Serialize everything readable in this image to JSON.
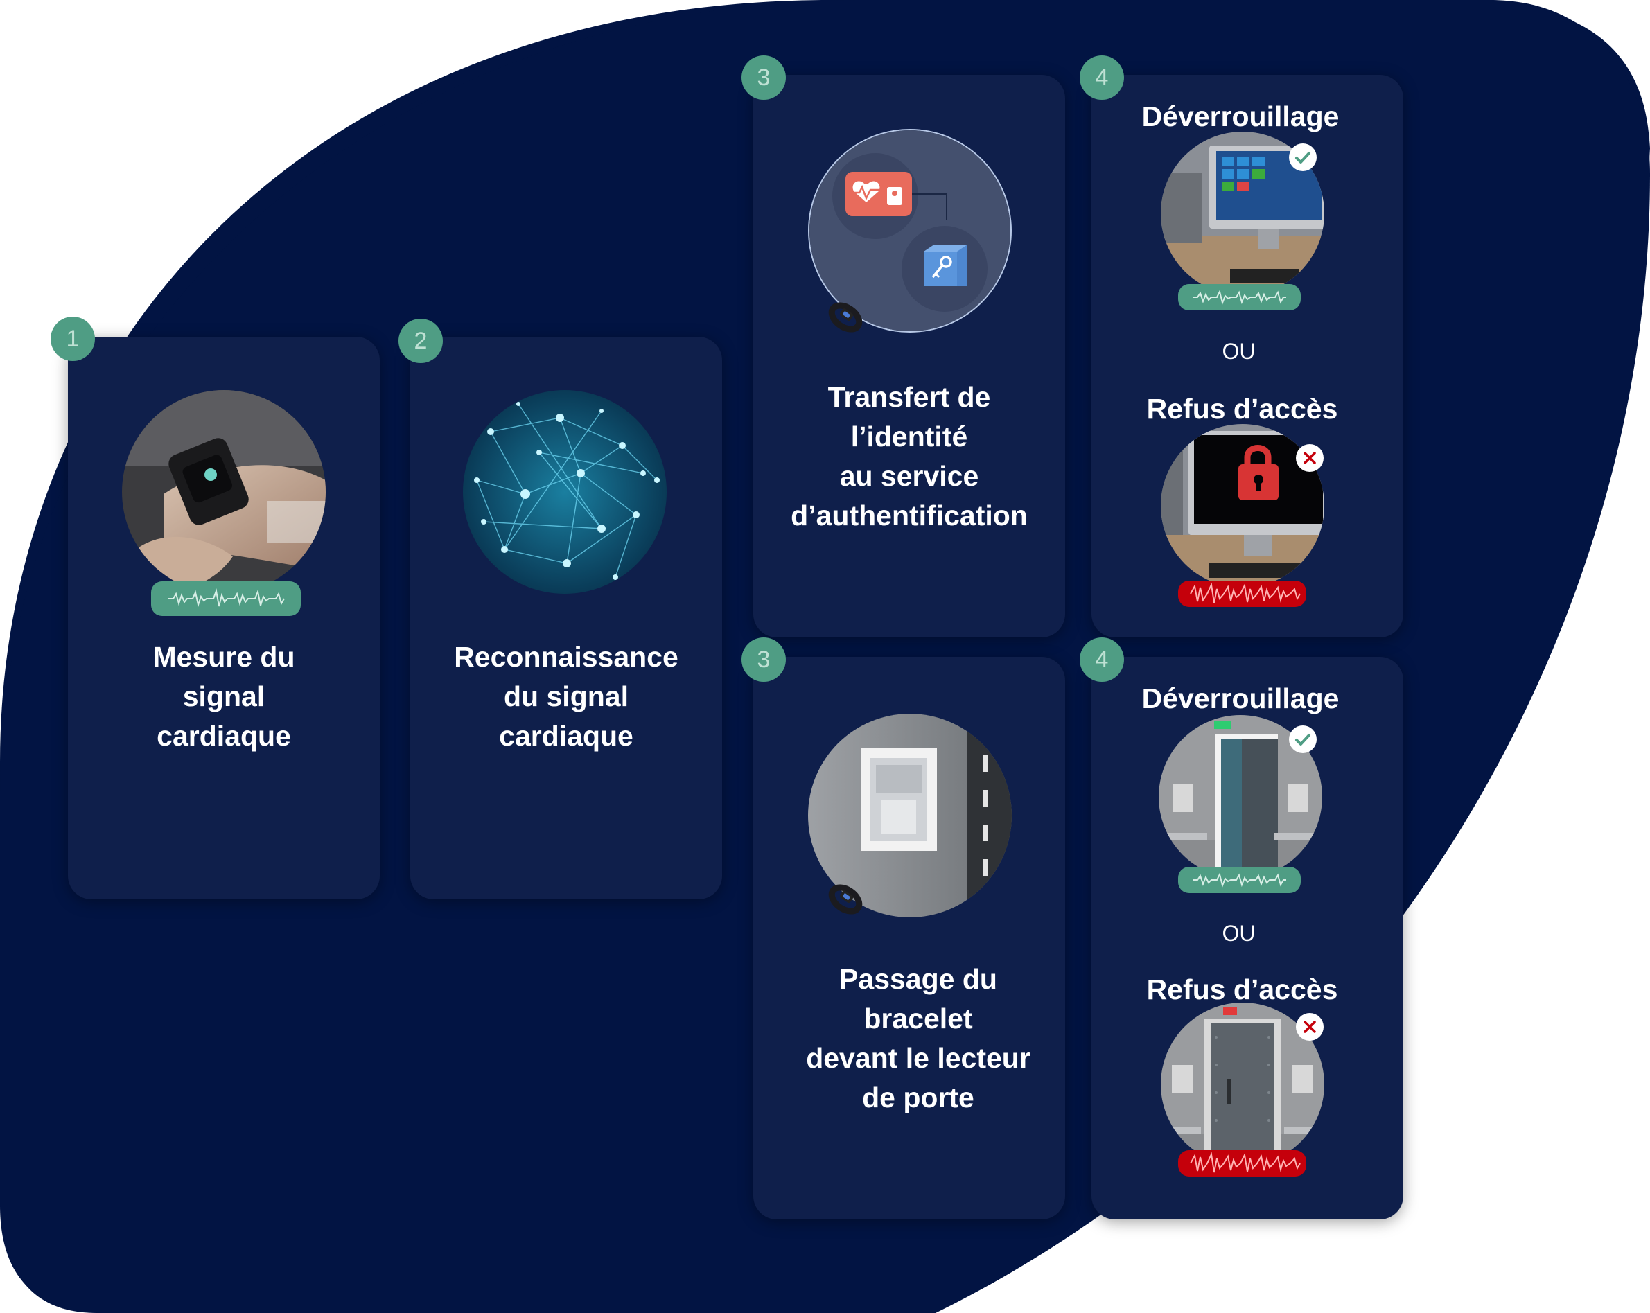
{
  "steps": {
    "s1": {
      "number": "1",
      "label": [
        "Mesure du",
        "signal",
        "cardiaque"
      ]
    },
    "s2": {
      "number": "2",
      "label": [
        "Reconnaissance",
        "du signal",
        "cardiaque"
      ]
    },
    "s3a": {
      "number": "3",
      "label": [
        "Transfert de",
        "l’identité",
        "au service",
        "d’authentification"
      ]
    },
    "s4a": {
      "number": "4",
      "success": "Déverrouillage",
      "or": "OU",
      "refusal": "Refus d’accès"
    },
    "s3b": {
      "number": "3",
      "label": [
        "Passage du",
        "bracelet",
        "devant le lecteur",
        "de porte"
      ]
    },
    "s4b": {
      "number": "4",
      "success": "Déverrouillage",
      "or": "OU",
      "refusal": "Refus d’accès"
    }
  },
  "icons": {
    "success": "check-icon",
    "refusal": "cross-icon",
    "heart": "heart-pulse-icon",
    "key": "key-icon",
    "lock": "padlock-icon",
    "wristband": "wristband-icon",
    "signal": "heartbeat-wave-icon"
  },
  "colors": {
    "background_shape": "#021443",
    "card": "#0f1f4b",
    "badge": "#4f9d84",
    "signal_ok": "#4f9d84",
    "signal_ko": "#c5000b"
  }
}
